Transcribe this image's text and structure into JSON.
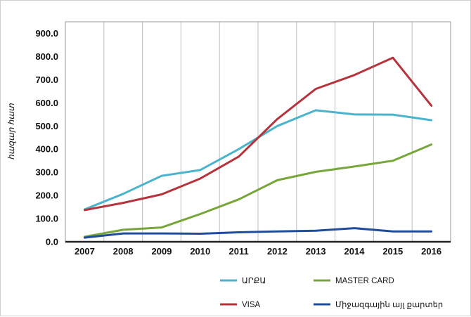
{
  "chart_data": {
    "type": "line",
    "title": "",
    "xlabel": "",
    "ylabel": "հազար հատ",
    "categories": [
      "2007",
      "2008",
      "2009",
      "2010",
      "2011",
      "2012",
      "2013",
      "2014",
      "2015",
      "2016"
    ],
    "ylim": [
      0,
      950
    ],
    "yticks": [
      "0.0",
      "100.0",
      "200.0",
      "300.0",
      "400.0",
      "500.0",
      "600.0",
      "700.0",
      "800.0",
      "900.0"
    ],
    "grid": "vertical",
    "legend_position": "bottom",
    "series": [
      {
        "name": "ԱՐՔԱ",
        "color": "#4bb3cc",
        "values": [
          140,
          207,
          285,
          310,
          400,
          500,
          568,
          550,
          549,
          525
        ]
      },
      {
        "name": "VISA",
        "color": "#b5333c",
        "values": [
          137,
          168,
          205,
          273,
          368,
          530,
          660,
          720,
          795,
          588
        ]
      },
      {
        "name": "MASTER CARD",
        "color": "#76a63a",
        "values": [
          22,
          52,
          62,
          120,
          183,
          266,
          302,
          325,
          350,
          420
        ]
      },
      {
        "name": "Միջազգային այլ քարտեր",
        "color": "#1f4d9b",
        "values": [
          18,
          36,
          36,
          35,
          41,
          45,
          48,
          59,
          45,
          45
        ]
      }
    ]
  }
}
